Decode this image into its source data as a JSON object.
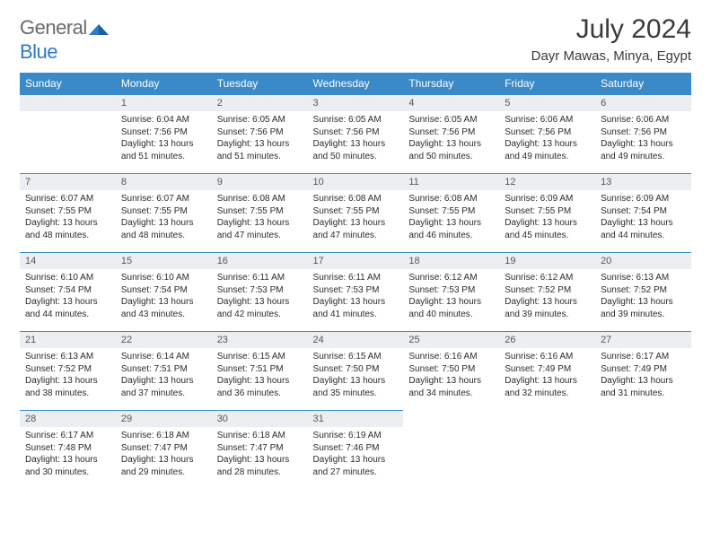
{
  "logo": {
    "word1": "General",
    "word2": "Blue"
  },
  "title": "July 2024",
  "location": "Dayr Mawas, Minya, Egypt",
  "colors": {
    "header_bg": "#3a8ac9",
    "header_text": "#ffffff",
    "daynum_bg": "#eceff1",
    "border": "#3a8ac9",
    "body_text": "#2b2b2b",
    "title_text": "#3a3a3a",
    "logo_gray": "#6a6a6a",
    "logo_blue": "#2f78c3"
  },
  "weekdays": [
    "Sunday",
    "Monday",
    "Tuesday",
    "Wednesday",
    "Thursday",
    "Friday",
    "Saturday"
  ],
  "start_offset": 1,
  "days": [
    {
      "n": 1,
      "sr": "6:04 AM",
      "ss": "7:56 PM",
      "dl": "13 hours and 51 minutes."
    },
    {
      "n": 2,
      "sr": "6:05 AM",
      "ss": "7:56 PM",
      "dl": "13 hours and 51 minutes."
    },
    {
      "n": 3,
      "sr": "6:05 AM",
      "ss": "7:56 PM",
      "dl": "13 hours and 50 minutes."
    },
    {
      "n": 4,
      "sr": "6:05 AM",
      "ss": "7:56 PM",
      "dl": "13 hours and 50 minutes."
    },
    {
      "n": 5,
      "sr": "6:06 AM",
      "ss": "7:56 PM",
      "dl": "13 hours and 49 minutes."
    },
    {
      "n": 6,
      "sr": "6:06 AM",
      "ss": "7:56 PM",
      "dl": "13 hours and 49 minutes."
    },
    {
      "n": 7,
      "sr": "6:07 AM",
      "ss": "7:55 PM",
      "dl": "13 hours and 48 minutes."
    },
    {
      "n": 8,
      "sr": "6:07 AM",
      "ss": "7:55 PM",
      "dl": "13 hours and 48 minutes."
    },
    {
      "n": 9,
      "sr": "6:08 AM",
      "ss": "7:55 PM",
      "dl": "13 hours and 47 minutes."
    },
    {
      "n": 10,
      "sr": "6:08 AM",
      "ss": "7:55 PM",
      "dl": "13 hours and 47 minutes."
    },
    {
      "n": 11,
      "sr": "6:08 AM",
      "ss": "7:55 PM",
      "dl": "13 hours and 46 minutes."
    },
    {
      "n": 12,
      "sr": "6:09 AM",
      "ss": "7:55 PM",
      "dl": "13 hours and 45 minutes."
    },
    {
      "n": 13,
      "sr": "6:09 AM",
      "ss": "7:54 PM",
      "dl": "13 hours and 44 minutes."
    },
    {
      "n": 14,
      "sr": "6:10 AM",
      "ss": "7:54 PM",
      "dl": "13 hours and 44 minutes."
    },
    {
      "n": 15,
      "sr": "6:10 AM",
      "ss": "7:54 PM",
      "dl": "13 hours and 43 minutes."
    },
    {
      "n": 16,
      "sr": "6:11 AM",
      "ss": "7:53 PM",
      "dl": "13 hours and 42 minutes."
    },
    {
      "n": 17,
      "sr": "6:11 AM",
      "ss": "7:53 PM",
      "dl": "13 hours and 41 minutes."
    },
    {
      "n": 18,
      "sr": "6:12 AM",
      "ss": "7:53 PM",
      "dl": "13 hours and 40 minutes."
    },
    {
      "n": 19,
      "sr": "6:12 AM",
      "ss": "7:52 PM",
      "dl": "13 hours and 39 minutes."
    },
    {
      "n": 20,
      "sr": "6:13 AM",
      "ss": "7:52 PM",
      "dl": "13 hours and 39 minutes."
    },
    {
      "n": 21,
      "sr": "6:13 AM",
      "ss": "7:52 PM",
      "dl": "13 hours and 38 minutes."
    },
    {
      "n": 22,
      "sr": "6:14 AM",
      "ss": "7:51 PM",
      "dl": "13 hours and 37 minutes."
    },
    {
      "n": 23,
      "sr": "6:15 AM",
      "ss": "7:51 PM",
      "dl": "13 hours and 36 minutes."
    },
    {
      "n": 24,
      "sr": "6:15 AM",
      "ss": "7:50 PM",
      "dl": "13 hours and 35 minutes."
    },
    {
      "n": 25,
      "sr": "6:16 AM",
      "ss": "7:50 PM",
      "dl": "13 hours and 34 minutes."
    },
    {
      "n": 26,
      "sr": "6:16 AM",
      "ss": "7:49 PM",
      "dl": "13 hours and 32 minutes."
    },
    {
      "n": 27,
      "sr": "6:17 AM",
      "ss": "7:49 PM",
      "dl": "13 hours and 31 minutes."
    },
    {
      "n": 28,
      "sr": "6:17 AM",
      "ss": "7:48 PM",
      "dl": "13 hours and 30 minutes."
    },
    {
      "n": 29,
      "sr": "6:18 AM",
      "ss": "7:47 PM",
      "dl": "13 hours and 29 minutes."
    },
    {
      "n": 30,
      "sr": "6:18 AM",
      "ss": "7:47 PM",
      "dl": "13 hours and 28 minutes."
    },
    {
      "n": 31,
      "sr": "6:19 AM",
      "ss": "7:46 PM",
      "dl": "13 hours and 27 minutes."
    }
  ],
  "labels": {
    "sunrise": "Sunrise:",
    "sunset": "Sunset:",
    "daylight": "Daylight:"
  }
}
